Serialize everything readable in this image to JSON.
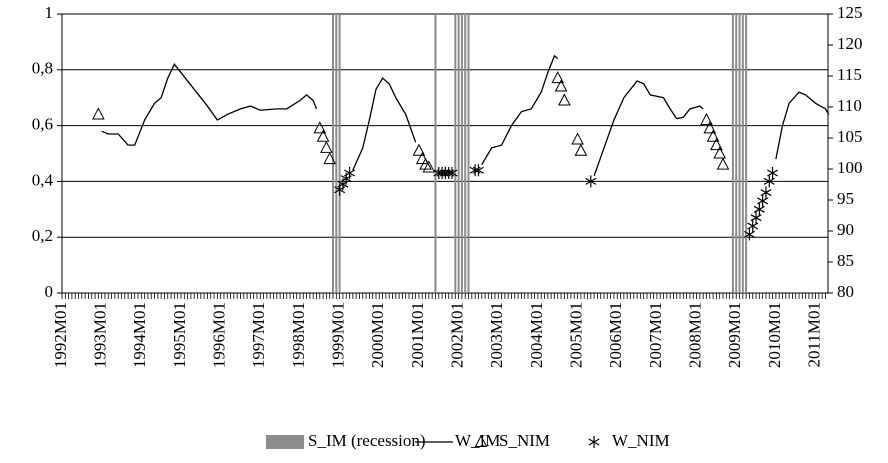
{
  "chart_data": {
    "type": "line",
    "x_labels": [
      "1992M01",
      "1993M01",
      "1994M01",
      "1995M01",
      "1996M01",
      "1997M01",
      "1998M01",
      "1999M01",
      "2000M01",
      "2001M01",
      "2002M01",
      "2003M01",
      "2004M01",
      "2005M01",
      "2006M01",
      "2007M01",
      "2008M01",
      "2009M01",
      "2010M01",
      "2011M01"
    ],
    "ylim": [
      0,
      1
    ],
    "yticks": [
      0,
      {
        "value": 0.2,
        "label": "0,2"
      },
      {
        "value": 0.4,
        "label": "0,4"
      },
      {
        "value": 0.6,
        "label": "0,6"
      },
      {
        "value": 0.8,
        "label": "0,8"
      },
      1
    ],
    "y2lim": [
      80,
      125
    ],
    "y2ticks": [
      80,
      85,
      90,
      95,
      100,
      105,
      110,
      115,
      120,
      125
    ],
    "grid": true,
    "legend": "bottom",
    "series": [
      {
        "name": "S_IM (recession)",
        "style": "bar",
        "color": "#8c8c8c",
        "x": [
          "1998M11",
          "1998M12",
          "1999M01",
          "2001M06",
          "2001M12",
          "2002M01",
          "2002M02",
          "2002M03",
          "2002M04",
          "2008M12",
          "2009M01",
          "2009M02",
          "2009M03",
          "2009M04"
        ],
        "values": [
          1,
          1,
          1,
          1,
          1,
          1,
          1,
          1,
          1,
          1,
          1,
          1,
          1,
          1
        ]
      },
      {
        "name": "W_IM",
        "style": "line",
        "color": "#000000",
        "x": [
          "1993M01",
          "1993M03",
          "1993M06",
          "1993M09",
          "1993M11",
          "1994M02",
          "1994M05",
          "1994M07",
          "1994M09",
          "1994M11",
          "1995M01",
          "1995M05",
          "1995M09",
          "1995M12",
          "1996M03",
          "1996M07",
          "1996M10",
          "1997M01",
          "1997M06",
          "1997M09",
          "1998M01",
          "1998M03",
          "1998M05",
          "1998M06",
          "1998M08",
          "1999M05",
          "1999M08",
          "1999M10",
          "1999M12",
          "2000M02",
          "2000M04",
          "2000M06",
          "2000M09",
          "2000M12",
          "2001M01",
          "2002M08",
          "2002M11",
          "2003M02",
          "2003M05",
          "2003M08",
          "2003M11",
          "2004M02",
          "2004M04",
          "2004M06",
          "2004M07",
          "2004M08",
          "2005M06",
          "2005M09",
          "2005M12",
          "2006M03",
          "2006M07",
          "2006M09",
          "2006M11",
          "2007M03",
          "2007M05",
          "2007M07",
          "2007M09",
          "2007M11",
          "2008M02",
          "2008M03",
          "2008M04",
          "2010M01",
          "2010M03",
          "2010M05",
          "2010M08",
          "2010M10",
          "2011M01",
          "2011M04",
          "2011M05"
        ],
        "values": [
          0.58,
          0.57,
          0.57,
          0.53,
          0.53,
          0.62,
          0.68,
          0.7,
          0.77,
          0.82,
          0.79,
          0.73,
          0.67,
          0.62,
          0.64,
          0.66,
          0.67,
          0.655,
          0.66,
          0.66,
          0.69,
          0.71,
          0.69,
          0.66,
          null,
          0.44,
          0.52,
          0.62,
          0.73,
          0.77,
          0.75,
          0.7,
          0.64,
          0.54,
          null,
          0.46,
          0.52,
          0.53,
          0.6,
          0.65,
          0.66,
          0.72,
          0.79,
          0.85,
          0.84,
          null,
          0.42,
          0.52,
          0.62,
          0.7,
          0.76,
          0.75,
          0.71,
          0.7,
          0.66,
          0.625,
          0.63,
          0.66,
          0.67,
          0.66,
          null,
          0.48,
          0.6,
          0.68,
          0.72,
          0.71,
          0.68,
          0.66,
          0.64
        ]
      },
      {
        "name": "S_NIM",
        "style": "triangle",
        "color": "#000000",
        "x": [
          "1992M12",
          "1998M07",
          "1998M08",
          "1998M09",
          "1998M10",
          "2001M01",
          "2001M02",
          "2001M03",
          "2001M04",
          "2004M07",
          "2004M08",
          "2004M09",
          "2005M01",
          "2005M02",
          "2008M04",
          "2008M05",
          "2008M06",
          "2008M07",
          "2008M08",
          "2008M09"
        ],
        "values": [
          0.64,
          0.59,
          0.56,
          0.52,
          0.48,
          0.51,
          0.48,
          0.46,
          0.45,
          0.77,
          0.74,
          0.69,
          0.55,
          0.51,
          0.62,
          0.59,
          0.56,
          0.53,
          0.5,
          0.46
        ]
      },
      {
        "name": "W_NIM",
        "style": "star",
        "color": "#000000",
        "x": [
          "1999M01",
          "1999M02",
          "1999M03",
          "1999M04",
          "2001M07",
          "2001M08",
          "2001M09",
          "2001M10",
          "2001M11",
          "2002M06",
          "2002M07",
          "2005M05",
          "2009M05",
          "2009M06",
          "2009M07",
          "2009M08",
          "2009M09",
          "2009M10",
          "2009M11",
          "2009M12"
        ],
        "values": [
          0.37,
          0.39,
          0.41,
          0.43,
          0.43,
          0.43,
          0.43,
          0.43,
          0.43,
          0.44,
          0.44,
          0.4,
          0.21,
          0.24,
          0.27,
          0.3,
          0.33,
          0.36,
          0.4,
          0.43
        ]
      }
    ]
  }
}
